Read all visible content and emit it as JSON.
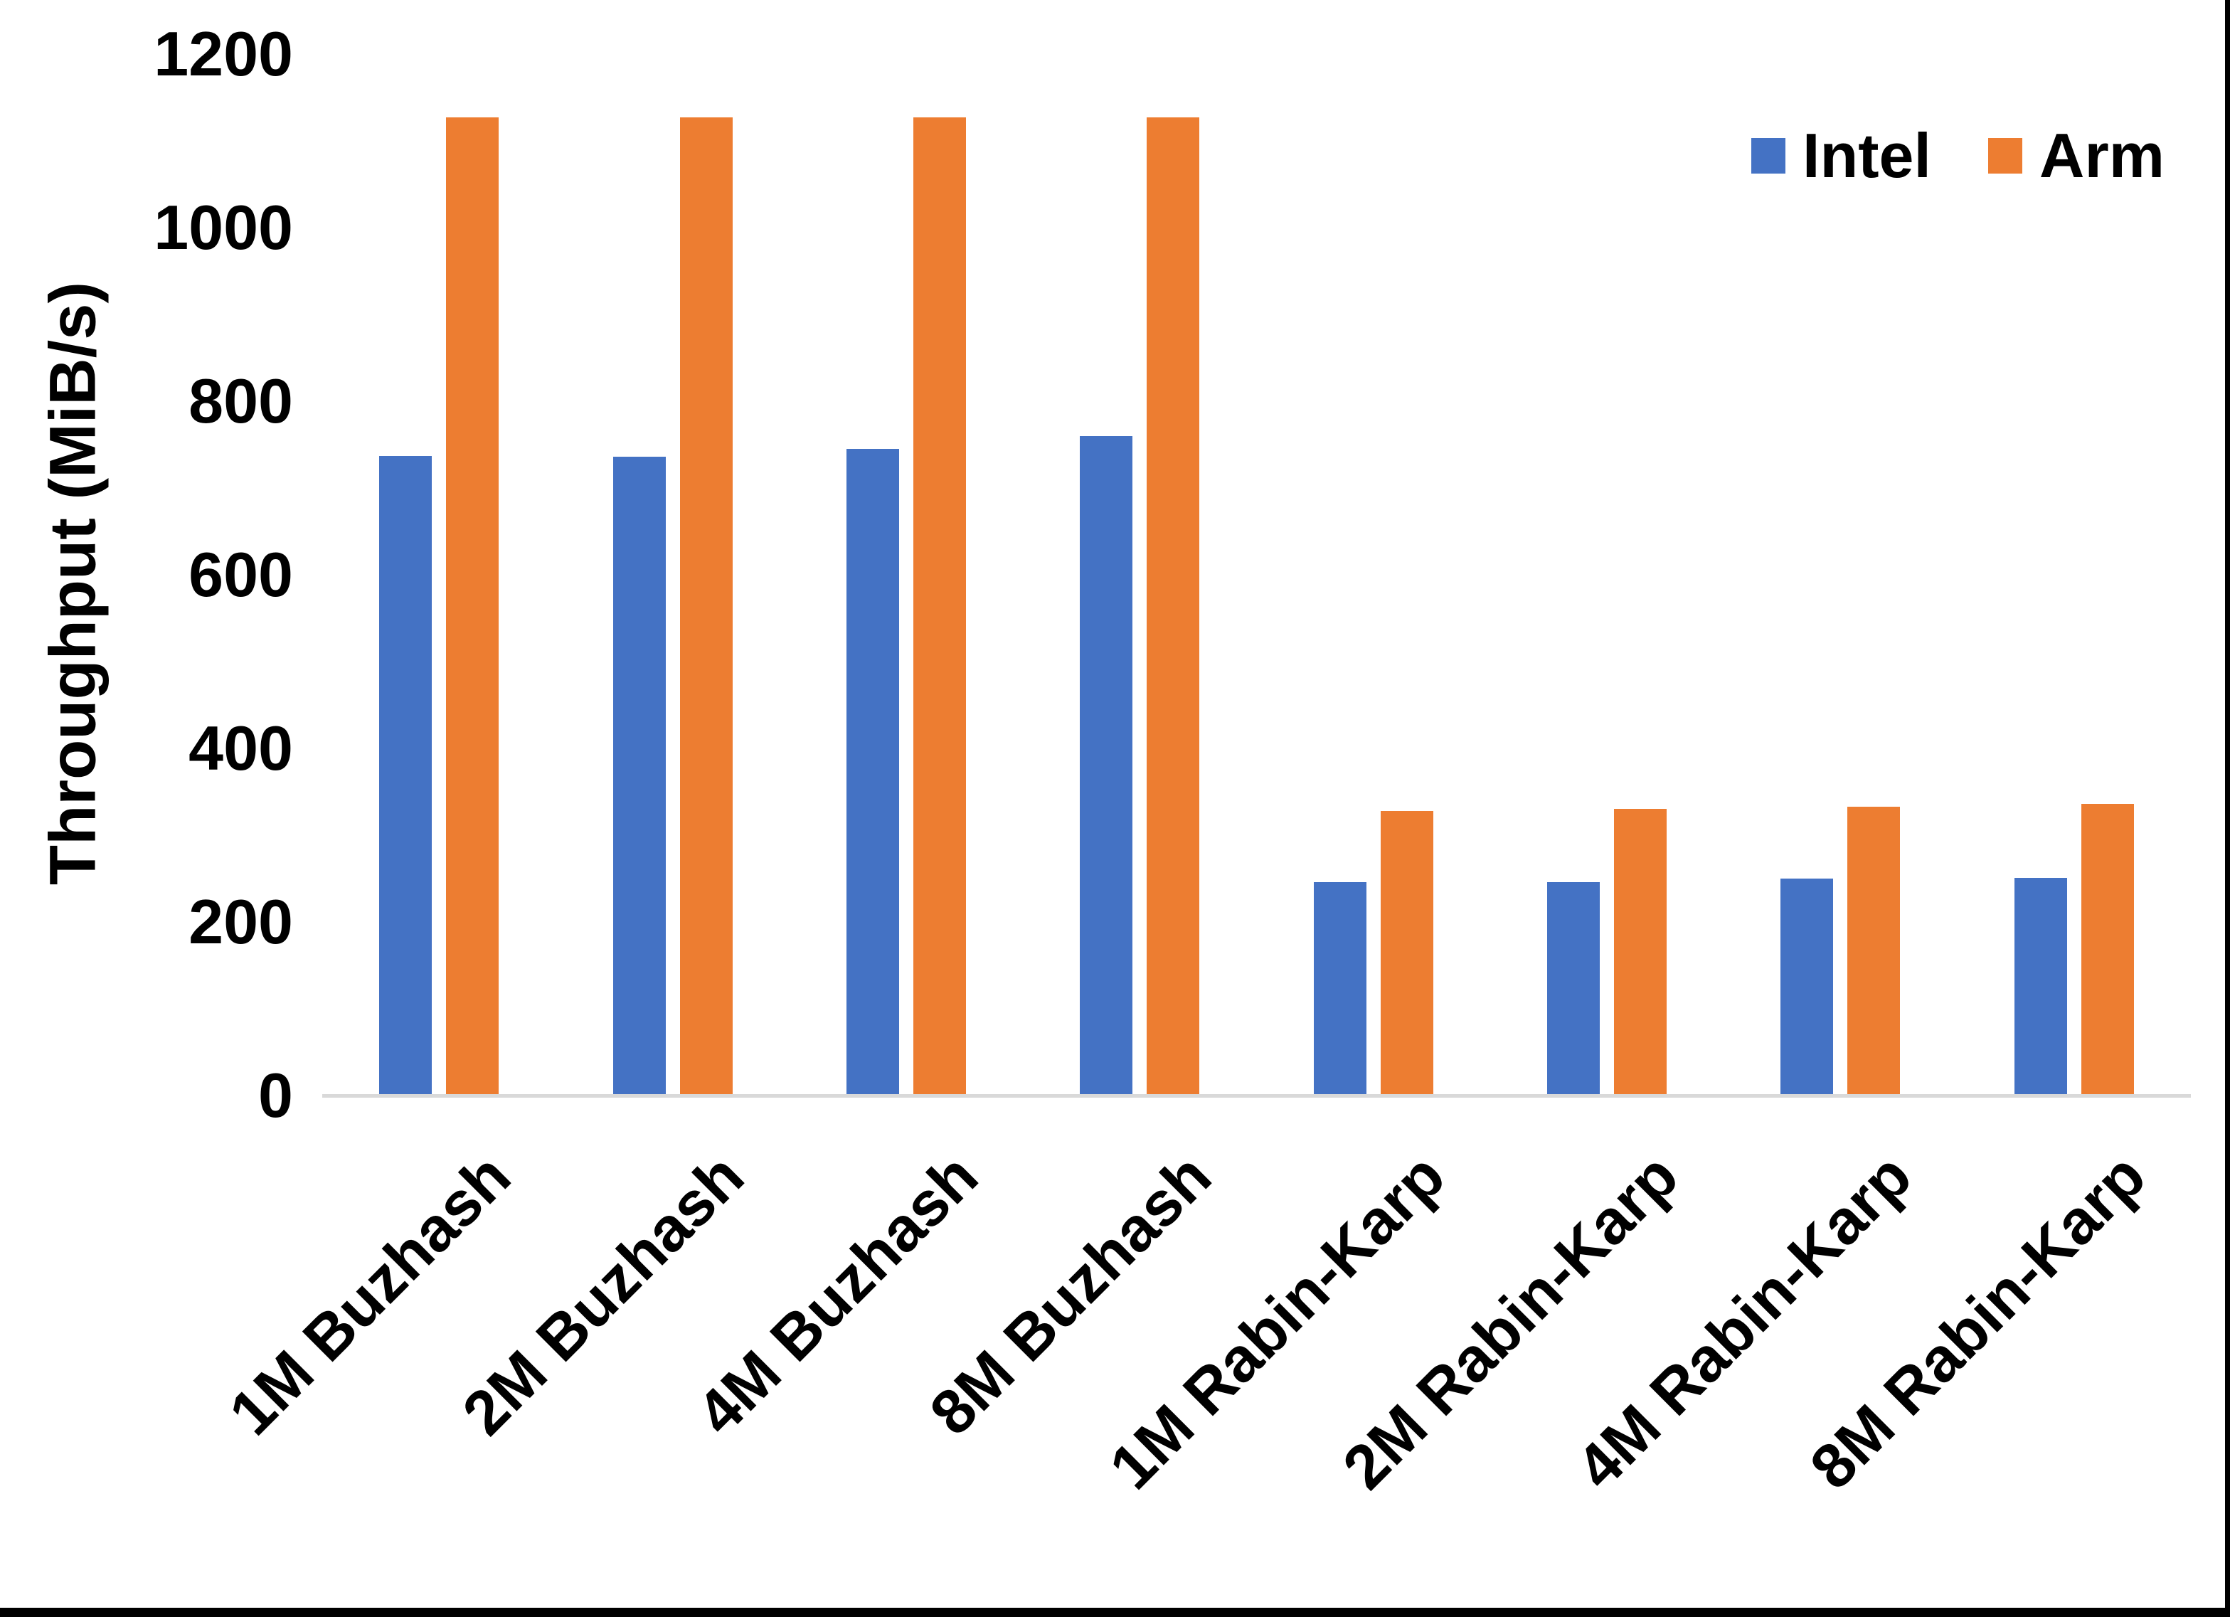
{
  "chart_data": {
    "type": "bar",
    "title": "",
    "xlabel": "",
    "ylabel": "Throughput (MiB/s)",
    "ylim": [
      0,
      1200
    ],
    "yticks": [
      0,
      200,
      400,
      600,
      800,
      1000,
      1200
    ],
    "grid": false,
    "legend_position": "top-right",
    "categories": [
      "1M Buzhash",
      "2M Buzhash",
      "4M Buzhash",
      "8M Buzhash",
      "1M Rabin-Karp",
      "2M Rabin-Karp",
      "4M Rabin-Karp",
      "8M Rabin-Karp"
    ],
    "series": [
      {
        "name": "Intel",
        "color": "#4472C4",
        "values": [
          737,
          736,
          745,
          760,
          246,
          246,
          250,
          251
        ]
      },
      {
        "name": "Arm",
        "color": "#ED7D31",
        "values": [
          1127,
          1127,
          1127,
          1127,
          328,
          330,
          333,
          336
        ]
      }
    ]
  },
  "colors": {
    "background": "#FFFFFF",
    "axis_line": "#D9D9D9",
    "text": "#000000",
    "frame_border": "#000000"
  }
}
